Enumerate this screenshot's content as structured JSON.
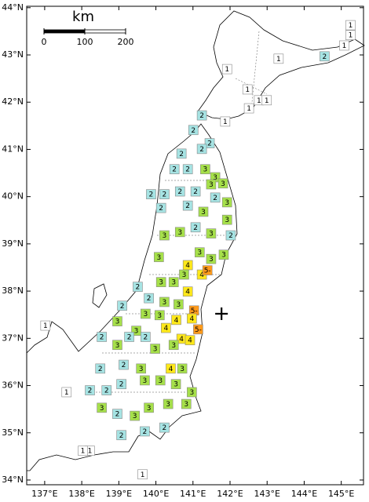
{
  "map": {
    "xlim": [
      136.515,
      145.6
    ],
    "ylim": [
      33.9,
      44.03
    ],
    "xticks": [
      {
        "value": 137,
        "label": "137°E"
      },
      {
        "value": 138,
        "label": "138°E"
      },
      {
        "value": 139,
        "label": "139°E"
      },
      {
        "value": 140,
        "label": "140°E"
      },
      {
        "value": 141,
        "label": "141°E"
      },
      {
        "value": 142,
        "label": "142°E"
      },
      {
        "value": 143,
        "label": "143°E"
      },
      {
        "value": 144,
        "label": "144°E"
      },
      {
        "value": 145,
        "label": "145°E"
      }
    ],
    "yticks": [
      {
        "value": 34,
        "label": "34°N"
      },
      {
        "value": 35,
        "label": "35°N"
      },
      {
        "value": 36,
        "label": "36°N"
      },
      {
        "value": 37,
        "label": "37°N"
      },
      {
        "value": 38,
        "label": "38°N"
      },
      {
        "value": 39,
        "label": "39°N"
      },
      {
        "value": 40,
        "label": "40°N"
      },
      {
        "value": 41,
        "label": "41°N"
      },
      {
        "value": 42,
        "label": "42°N"
      },
      {
        "value": 43,
        "label": "43°N"
      },
      {
        "value": 44,
        "label": "44°N"
      }
    ],
    "scale_bar": {
      "title": "km",
      "ticks": [
        0,
        100,
        200
      ]
    },
    "intensity_colors": {
      "1": "#ffffff",
      "2": "#a6e3e3",
      "3": "#a6e04a",
      "4": "#ffe81a",
      "5-": "#ff9a1a"
    },
    "epicenter": {
      "lon": 141.77,
      "lat": 37.52
    },
    "stations": {
      "lon": [
        145.25,
        145.25,
        145.08,
        144.55,
        143.31,
        141.92,
        142.47,
        142.78,
        142.99,
        142.51,
        141.87,
        141.24,
        141.01,
        141.45,
        141.24,
        140.69,
        140.5,
        140.86,
        141.33,
        141.6,
        141.49,
        141.81,
        139.87,
        140.23,
        140.65,
        141.07,
        141.6,
        141.92,
        140.14,
        140.86,
        141.28,
        141.92,
        140.23,
        140.65,
        141.07,
        141.49,
        142.02,
        140.08,
        141.18,
        141.49,
        141.83,
        140.86,
        141.24,
        141.39,
        140.76,
        140.14,
        140.48,
        139.51,
        140.86,
        139.81,
        140.23,
        140.61,
        141.03,
        139.09,
        139.72,
        140.1,
        140.55,
        140.97,
        141.14,
        138.96,
        139.47,
        140.27,
        140.69,
        140.92,
        138.54,
        138.96,
        139.28,
        139.72,
        139.98,
        140.48,
        138.5,
        139.13,
        139.6,
        140.4,
        140.71,
        138.22,
        138.67,
        139.07,
        139.7,
        140.12,
        140.54,
        140.97,
        138.54,
        138.96,
        139.43,
        139.81,
        140.33,
        140.82,
        137.59,
        137.02,
        138.22,
        138.03,
        139.07,
        139.7,
        140.23,
        139.64
      ],
      "lat": [
        43.63,
        43.42,
        43.2,
        42.97,
        42.92,
        42.7,
        42.27,
        42.04,
        42.04,
        41.87,
        41.59,
        41.72,
        41.41,
        41.13,
        41.01,
        40.91,
        40.58,
        40.58,
        40.58,
        40.41,
        40.26,
        40.28,
        40.05,
        40.05,
        40.11,
        40.11,
        39.98,
        39.88,
        39.76,
        39.81,
        39.68,
        39.51,
        39.18,
        39.25,
        39.35,
        39.22,
        39.18,
        38.72,
        38.82,
        38.68,
        38.77,
        38.55,
        38.35,
        38.44,
        38.35,
        38.19,
        38.19,
        38.09,
        37.99,
        37.85,
        37.77,
        37.72,
        37.59,
        37.69,
        37.52,
        37.49,
        37.39,
        37.42,
        37.19,
        37.36,
        37.16,
        37.22,
        36.99,
        36.96,
        37.03,
        36.86,
        37.03,
        37.03,
        36.78,
        36.86,
        36.36,
        36.44,
        36.36,
        36.36,
        36.36,
        35.9,
        35.9,
        36.03,
        36.11,
        36.11,
        36.03,
        35.86,
        35.53,
        35.4,
        35.36,
        35.53,
        35.61,
        35.61,
        35.86,
        37.27,
        34.62,
        34.62,
        34.95,
        35.03,
        35.11,
        34.12
      ],
      "intensity": [
        1,
        1,
        1,
        2,
        1,
        1,
        1,
        1,
        1,
        1,
        1,
        2,
        2,
        2,
        2,
        2,
        2,
        2,
        3,
        3,
        3,
        3,
        2,
        2,
        2,
        2,
        2,
        3,
        2,
        2,
        3,
        3,
        3,
        3,
        2,
        3,
        2,
        3,
        3,
        3,
        3,
        4,
        4,
        "5-",
        3,
        3,
        3,
        2,
        4,
        2,
        3,
        3,
        "5-",
        2,
        3,
        3,
        4,
        4,
        "5-",
        3,
        3,
        4,
        4,
        4,
        2,
        3,
        2,
        2,
        3,
        3,
        2,
        2,
        3,
        4,
        3,
        2,
        2,
        2,
        3,
        3,
        3,
        3,
        3,
        2,
        3,
        3,
        3,
        3,
        1,
        1,
        1,
        1,
        2,
        2,
        2,
        1
      ]
    }
  }
}
